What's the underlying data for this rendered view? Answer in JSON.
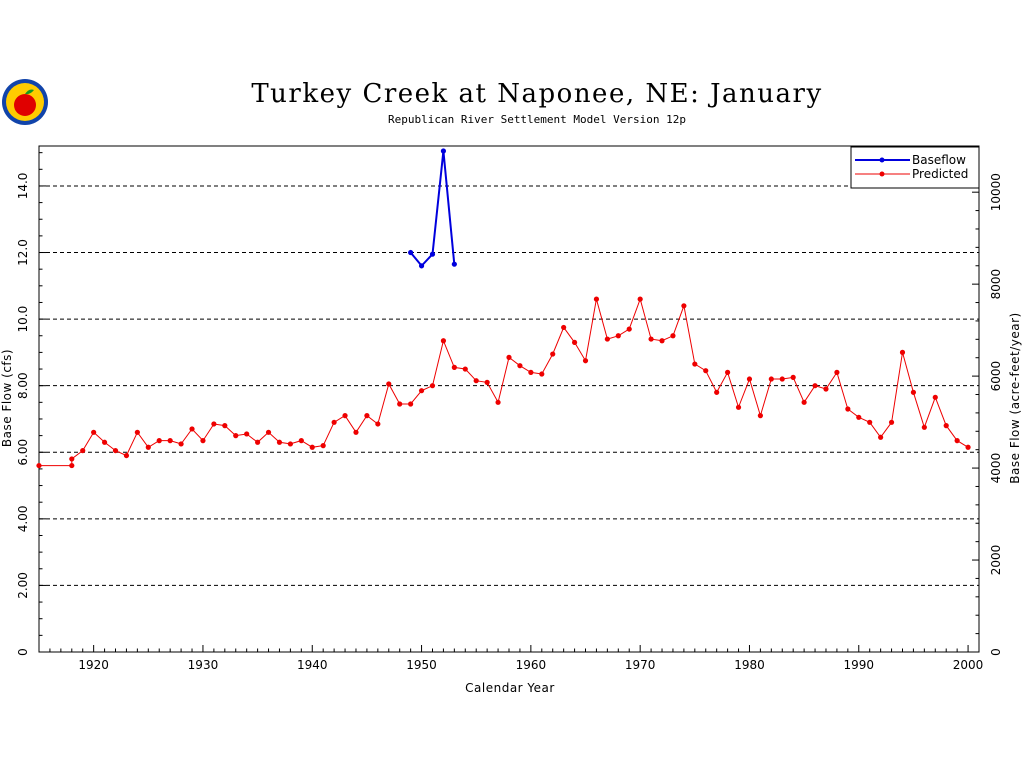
{
  "chart_data": {
    "type": "line",
    "title": "Turkey Creek at Naponee, NE: January",
    "subtitle": "Republican River Settlement Model Version 12p",
    "xlabel": "Calendar Year",
    "ylabel_left": "Base Flow (cfs)",
    "ylabel_right": "Base Flow (acre-feet/year)",
    "xlim": [
      1915,
      2001
    ],
    "ylim": [
      0,
      15.2
    ],
    "x_ticks": [
      1920,
      1930,
      1940,
      1950,
      1960,
      1970,
      1980,
      1990,
      2000
    ],
    "y_ticks": [
      0,
      2,
      4,
      6,
      8,
      10,
      12,
      14
    ],
    "y_tick_labels": [
      "0",
      "2.00",
      "4.00",
      "6.00",
      "8.00",
      "10.0",
      "12.0",
      "14.0"
    ],
    "y2_ticks": [
      0,
      2000,
      4000,
      6000,
      8000,
      10000
    ],
    "grid": "horizontal-dashed",
    "legend": "top-right",
    "colors": {
      "baseflow": "#0000dd",
      "predicted": "#ee0000"
    },
    "series": [
      {
        "name": "Baseflow",
        "x": [
          1949,
          1950,
          1951,
          1952,
          1953
        ],
        "y": [
          12.0,
          11.6,
          11.95,
          15.05,
          11.65
        ]
      },
      {
        "name": "Predicted",
        "x": [
          1915,
          1916,
          1917,
          1918,
          1918,
          1919,
          1920,
          1921,
          1922,
          1923,
          1924,
          1925,
          1926,
          1927,
          1928,
          1929,
          1930,
          1931,
          1932,
          1933,
          1934,
          1935,
          1936,
          1937,
          1938,
          1939,
          1940,
          1941,
          1942,
          1943,
          1944,
          1945,
          1946,
          1947,
          1948,
          1949,
          1950,
          1951,
          1952,
          1953,
          1954,
          1955,
          1956,
          1957,
          1958,
          1959,
          1960,
          1961,
          1962,
          1963,
          1964,
          1965,
          1966,
          1967,
          1968,
          1969,
          1970,
          1971,
          1972,
          1973,
          1974,
          1975,
          1976,
          1977,
          1978,
          1979,
          1980,
          1981,
          1982,
          1983,
          1984,
          1985,
          1986,
          1987,
          1988,
          1989,
          1990,
          1991,
          1992,
          1993,
          1994,
          1995,
          1996,
          1997,
          1998,
          1999,
          2000
        ],
        "y": [
          5.6,
          5.6,
          5.6,
          5.6,
          5.8,
          6.05,
          6.6,
          6.3,
          6.05,
          5.9,
          6.6,
          6.15,
          6.35,
          6.35,
          6.25,
          6.7,
          6.35,
          6.85,
          6.8,
          6.5,
          6.55,
          6.3,
          6.6,
          6.3,
          6.25,
          6.35,
          6.15,
          6.2,
          6.9,
          7.1,
          6.6,
          7.1,
          6.85,
          8.05,
          7.45,
          7.45,
          7.85,
          8.0,
          9.35,
          8.55,
          8.5,
          8.15,
          8.1,
          7.5,
          8.85,
          8.6,
          8.4,
          8.35,
          8.95,
          9.75,
          9.3,
          8.75,
          10.6,
          9.4,
          9.5,
          9.7,
          10.6,
          9.4,
          9.35,
          9.5,
          10.4,
          8.65,
          8.45,
          7.8,
          8.4,
          7.35,
          8.2,
          7.1,
          8.2,
          8.2,
          8.25,
          7.5,
          8.0,
          7.9,
          8.4,
          7.3,
          7.05,
          6.9,
          6.45,
          6.9,
          9.0,
          7.8,
          6.75,
          7.65,
          6.8,
          6.35,
          6.15
        ]
      }
    ]
  }
}
